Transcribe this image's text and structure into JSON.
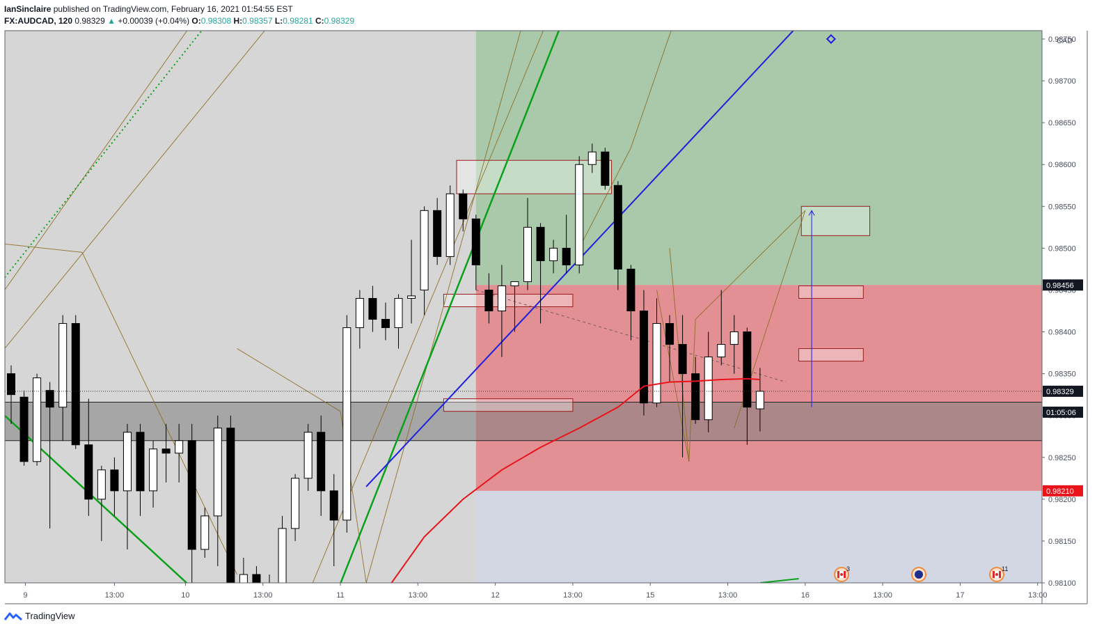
{
  "header": {
    "author": "IanSinclaire",
    "published_text": "published on TradingView.com, February 16, 2021 01:54:55 EST",
    "symbol": "FX:AUDCAD, 120",
    "last": "0.98329",
    "change": "+0.00039 (+0.04%)",
    "open_label": "O:",
    "open": "0.98308",
    "high_label": "H:",
    "high": "0.98357",
    "low_label": "L:",
    "low": "0.98281",
    "close_label": "C:",
    "close": "0.98329"
  },
  "footer": {
    "brand": "TradingView"
  },
  "colors": {
    "bull": "#ffffff",
    "bear": "#000000",
    "ma": "#e8141a",
    "target_zone": "#a6c8a6",
    "stop_zone": "#e3888b",
    "trend_blue": "#1f1fe0",
    "trend_green": "#0aa11a",
    "pattern": "#8b6a1f"
  },
  "chart_data": {
    "type": "candlestick",
    "symbol": "FX:AUDCAD",
    "interval": "120",
    "currency_label": "CAD",
    "y_range": [
      0.981,
      0.9876
    ],
    "y_ticks": [
      "0.98100",
      "0.98150",
      "0.98200",
      "0.98250",
      "0.98300",
      "0.98350",
      "0.98400",
      "0.98450",
      "0.98500",
      "0.98550",
      "0.98600",
      "0.98650",
      "0.98700",
      "0.98750"
    ],
    "x_ticks": [
      "9",
      "13:00",
      "10",
      "13:00",
      "11",
      "13:00",
      "12",
      "13:00",
      "15",
      "13:00",
      "16",
      "13:00",
      "17",
      "13:00"
    ],
    "candles": [
      {
        "o": 0.9835,
        "h": 0.9836,
        "l": 0.9829,
        "c": 0.98325
      },
      {
        "o": 0.98322,
        "h": 0.9833,
        "l": 0.9824,
        "c": 0.98245
      },
      {
        "o": 0.98245,
        "h": 0.9835,
        "l": 0.9824,
        "c": 0.98345
      },
      {
        "o": 0.9833,
        "h": 0.9834,
        "l": 0.98165,
        "c": 0.9831
      },
      {
        "o": 0.9831,
        "h": 0.9842,
        "l": 0.9827,
        "c": 0.9841
      },
      {
        "o": 0.9841,
        "h": 0.9842,
        "l": 0.9826,
        "c": 0.98265
      },
      {
        "o": 0.98265,
        "h": 0.9832,
        "l": 0.9818,
        "c": 0.982
      },
      {
        "o": 0.982,
        "h": 0.9824,
        "l": 0.9815,
        "c": 0.98235
      },
      {
        "o": 0.98235,
        "h": 0.9825,
        "l": 0.9818,
        "c": 0.9821
      },
      {
        "o": 0.9821,
        "h": 0.9829,
        "l": 0.9814,
        "c": 0.9828
      },
      {
        "o": 0.9828,
        "h": 0.9829,
        "l": 0.9818,
        "c": 0.9821
      },
      {
        "o": 0.9821,
        "h": 0.9827,
        "l": 0.9819,
        "c": 0.9826
      },
      {
        "o": 0.9826,
        "h": 0.9829,
        "l": 0.9822,
        "c": 0.98255
      },
      {
        "o": 0.98255,
        "h": 0.9829,
        "l": 0.9822,
        "c": 0.9827
      },
      {
        "o": 0.9827,
        "h": 0.9829,
        "l": 0.981,
        "c": 0.9814
      },
      {
        "o": 0.9814,
        "h": 0.9819,
        "l": 0.9813,
        "c": 0.9818
      },
      {
        "o": 0.9818,
        "h": 0.983,
        "l": 0.9812,
        "c": 0.98285
      },
      {
        "o": 0.98285,
        "h": 0.983,
        "l": 0.9808,
        "c": 0.98095
      },
      {
        "o": 0.98095,
        "h": 0.9813,
        "l": 0.9806,
        "c": 0.9811
      },
      {
        "o": 0.9811,
        "h": 0.9812,
        "l": 0.9805,
        "c": 0.9807
      },
      {
        "o": 0.9807,
        "h": 0.9811,
        "l": 0.9804,
        "c": 0.9808
      },
      {
        "o": 0.9809,
        "h": 0.9818,
        "l": 0.9808,
        "c": 0.98165
      },
      {
        "o": 0.98165,
        "h": 0.9823,
        "l": 0.9815,
        "c": 0.98225
      },
      {
        "o": 0.98225,
        "h": 0.9829,
        "l": 0.9821,
        "c": 0.9828
      },
      {
        "o": 0.9828,
        "h": 0.983,
        "l": 0.9818,
        "c": 0.9821
      },
      {
        "o": 0.9821,
        "h": 0.9823,
        "l": 0.9812,
        "c": 0.98175
      },
      {
        "o": 0.98175,
        "h": 0.9842,
        "l": 0.9816,
        "c": 0.98405
      },
      {
        "o": 0.98405,
        "h": 0.9845,
        "l": 0.9838,
        "c": 0.9844
      },
      {
        "o": 0.9844,
        "h": 0.98455,
        "l": 0.984,
        "c": 0.98415
      },
      {
        "o": 0.98415,
        "h": 0.98435,
        "l": 0.9839,
        "c": 0.98405
      },
      {
        "o": 0.98405,
        "h": 0.98445,
        "l": 0.9838,
        "c": 0.9844
      },
      {
        "o": 0.9844,
        "h": 0.9851,
        "l": 0.9841,
        "c": 0.98443
      },
      {
        "o": 0.9845,
        "h": 0.9855,
        "l": 0.9842,
        "c": 0.98545
      },
      {
        "o": 0.98545,
        "h": 0.9856,
        "l": 0.9848,
        "c": 0.9849
      },
      {
        "o": 0.9849,
        "h": 0.98575,
        "l": 0.9848,
        "c": 0.98565
      },
      {
        "o": 0.98565,
        "h": 0.9857,
        "l": 0.9852,
        "c": 0.98535
      },
      {
        "o": 0.98535,
        "h": 0.9854,
        "l": 0.9845,
        "c": 0.9848
      },
      {
        "o": 0.9845,
        "h": 0.9847,
        "l": 0.9841,
        "c": 0.98425
      },
      {
        "o": 0.98425,
        "h": 0.9848,
        "l": 0.9837,
        "c": 0.98455
      },
      {
        "o": 0.98455,
        "h": 0.9846,
        "l": 0.984,
        "c": 0.9846
      },
      {
        "o": 0.9846,
        "h": 0.9856,
        "l": 0.9845,
        "c": 0.98525
      },
      {
        "o": 0.98525,
        "h": 0.9853,
        "l": 0.9841,
        "c": 0.98485
      },
      {
        "o": 0.98485,
        "h": 0.9851,
        "l": 0.9847,
        "c": 0.985
      },
      {
        "o": 0.985,
        "h": 0.9854,
        "l": 0.9847,
        "c": 0.9848
      },
      {
        "o": 0.9848,
        "h": 0.9861,
        "l": 0.9847,
        "c": 0.986
      },
      {
        "o": 0.986,
        "h": 0.98625,
        "l": 0.9859,
        "c": 0.98615
      },
      {
        "o": 0.98615,
        "h": 0.9862,
        "l": 0.9857,
        "c": 0.98575
      },
      {
        "o": 0.98575,
        "h": 0.9858,
        "l": 0.9845,
        "c": 0.98475
      },
      {
        "o": 0.98475,
        "h": 0.9848,
        "l": 0.9839,
        "c": 0.98425
      },
      {
        "o": 0.98425,
        "h": 0.9845,
        "l": 0.983,
        "c": 0.98315
      },
      {
        "o": 0.98315,
        "h": 0.9844,
        "l": 0.9831,
        "c": 0.9841
      },
      {
        "o": 0.9841,
        "h": 0.9842,
        "l": 0.9834,
        "c": 0.98385
      },
      {
        "o": 0.98385,
        "h": 0.9842,
        "l": 0.9825,
        "c": 0.9835
      },
      {
        "o": 0.9835,
        "h": 0.9837,
        "l": 0.9829,
        "c": 0.98295
      },
      {
        "o": 0.98295,
        "h": 0.984,
        "l": 0.9828,
        "c": 0.9837
      },
      {
        "o": 0.9837,
        "h": 0.9845,
        "l": 0.9836,
        "c": 0.98385
      },
      {
        "o": 0.98385,
        "h": 0.9842,
        "l": 0.9835,
        "c": 0.984
      },
      {
        "o": 0.984,
        "h": 0.98405,
        "l": 0.98265,
        "c": 0.9831
      },
      {
        "o": 0.98308,
        "h": 0.98357,
        "l": 0.98281,
        "c": 0.98329
      }
    ],
    "moving_average": [
      {
        "i": 29,
        "v": 0.9809
      },
      {
        "i": 32,
        "v": 0.98155
      },
      {
        "i": 35,
        "v": 0.982
      },
      {
        "i": 38,
        "v": 0.98235
      },
      {
        "i": 41,
        "v": 0.98262
      },
      {
        "i": 44,
        "v": 0.98285
      },
      {
        "i": 47,
        "v": 0.9831
      },
      {
        "i": 49,
        "v": 0.98335
      },
      {
        "i": 51,
        "v": 0.9834
      },
      {
        "i": 53,
        "v": 0.98341
      },
      {
        "i": 55,
        "v": 0.98343
      },
      {
        "i": 57,
        "v": 0.98344
      },
      {
        "i": 58,
        "v": 0.98343
      }
    ],
    "position": {
      "entry": 0.98456,
      "stop": 0.9821,
      "target": 0.9876,
      "entry_label": "0.98456",
      "stop_label": "0.98210"
    },
    "current_price_label": "0.98329",
    "countdown_label": "01:05:06",
    "support_zone": [
      0.9827,
      0.98316
    ],
    "event_badges": [
      {
        "flag": "CA",
        "count": "3"
      },
      {
        "flag": "AU",
        "count": ""
      },
      {
        "flag": "CA",
        "count": "11"
      }
    ]
  }
}
